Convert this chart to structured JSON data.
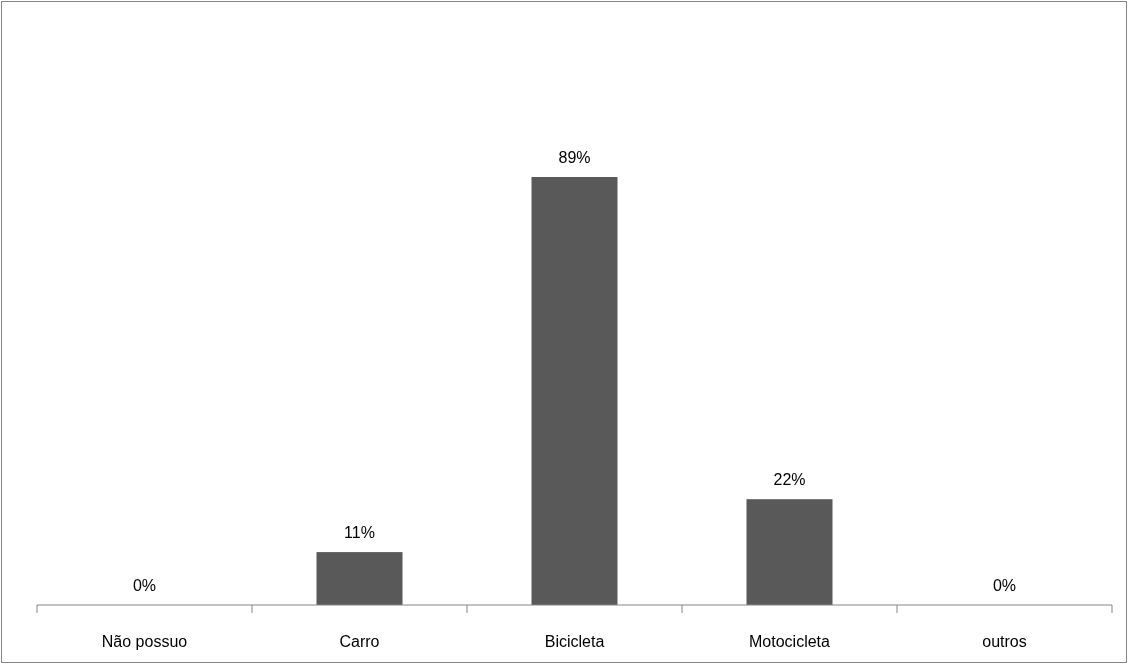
{
  "chart_data": {
    "type": "bar",
    "categories": [
      "Não possuo",
      "Carro",
      "Bicicleta",
      "Motocicleta",
      "outros"
    ],
    "values": [
      0,
      11,
      89,
      22,
      0
    ],
    "color": "#595959",
    "value_labels": [
      "0%",
      "11%",
      "89%",
      "22%",
      "0%"
    ]
  }
}
